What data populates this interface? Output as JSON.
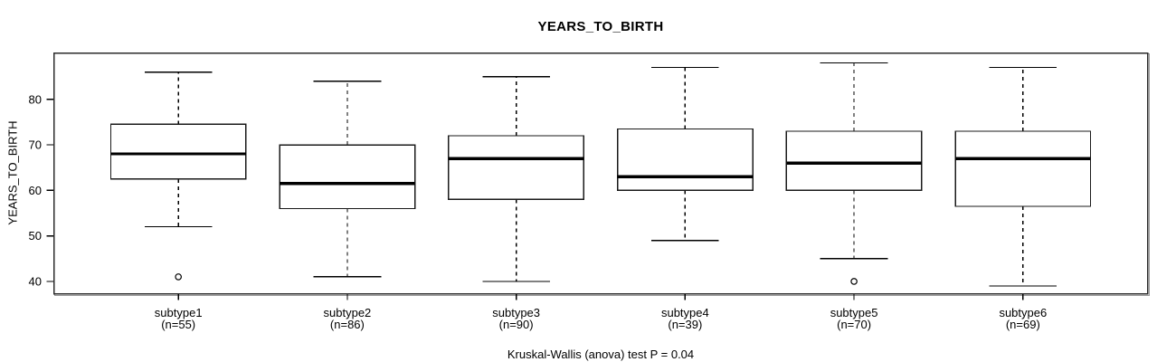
{
  "chart_data": {
    "type": "boxplot",
    "title": "YEARS_TO_BIRTH",
    "ylabel": "YEARS_TO_BIRTH",
    "xlabel": "",
    "caption": "Kruskal-Wallis (anova) test P = 0.04",
    "ylim": [
      37.2,
      90.3
    ],
    "yticks": [
      40,
      50,
      60,
      70,
      80
    ],
    "grid": false,
    "legend": "none",
    "groups": [
      {
        "label": "subtype1",
        "n_label": "(n=55)",
        "n": 55,
        "whisker_low": 52,
        "q1": 62.5,
        "median": 68,
        "q3": 74.5,
        "whisker_high": 86,
        "outliers": [
          41
        ]
      },
      {
        "label": "subtype2",
        "n_label": "(n=86)",
        "n": 86,
        "whisker_low": 41,
        "q1": 56,
        "median": 61.5,
        "q3": 70,
        "whisker_high": 84,
        "outliers": []
      },
      {
        "label": "subtype3",
        "n_label": "(n=90)",
        "n": 90,
        "whisker_low": 40,
        "q1": 58,
        "median": 67,
        "q3": 72,
        "whisker_high": 85,
        "outliers": []
      },
      {
        "label": "subtype4",
        "n_label": "(n=39)",
        "n": 39,
        "whisker_low": 49,
        "q1": 60,
        "median": 63,
        "q3": 73.5,
        "whisker_high": 87,
        "outliers": []
      },
      {
        "label": "subtype5",
        "n_label": "(n=70)",
        "n": 70,
        "whisker_low": 45,
        "q1": 60,
        "median": 66,
        "q3": 73,
        "whisker_high": 88,
        "outliers": [
          40
        ]
      },
      {
        "label": "subtype6",
        "n_label": "(n=69)",
        "n": 69,
        "whisker_low": 39,
        "q1": 56.5,
        "median": 67,
        "q3": 73,
        "whisker_high": 87,
        "outliers": []
      }
    ],
    "colors": {
      "line": "#000000",
      "box_border": "#1a1a1a",
      "box_fill": "#ffffff",
      "median": "#000000",
      "frame": "#2b2b2b",
      "frame_shadow": "#9a9a9a",
      "background": "#ffffff"
    }
  }
}
